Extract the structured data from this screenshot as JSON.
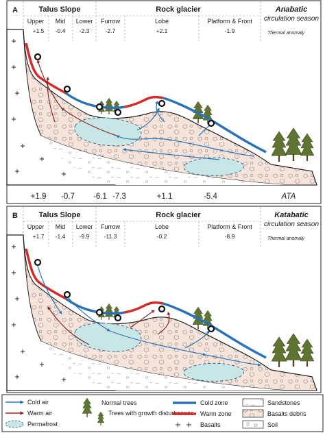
{
  "colors": {
    "cold": "#2a72b5",
    "warm": "#d42a2a",
    "slope_fill": "#f4e4dc",
    "permafrost": "#c8e6e6",
    "tree": "#5f7430"
  },
  "panels": [
    {
      "letter": "A",
      "headers": {
        "talus": "Talus Slope",
        "rock": "Rock glacier"
      },
      "season": {
        "title": "Anabatic",
        "sub": "circulation season"
      },
      "thermal_label": "Thermal anomaly",
      "zones": [
        {
          "label": "Upper",
          "value": "+1.5"
        },
        {
          "label": "Mid",
          "value": "-0.4"
        },
        {
          "label": "Lower",
          "value": "-2.3"
        },
        {
          "label": "Furrow",
          "value": "-2.7"
        },
        {
          "label": "Lobe",
          "value": "+2.1"
        },
        {
          "label": "Platform & Front",
          "value": "-1.9"
        }
      ],
      "ata_label": "ATA",
      "ata_values": [
        "+1.9",
        "-0.7",
        "-6.1",
        "-7.3",
        "+1.1",
        "-5.4"
      ]
    },
    {
      "letter": "B",
      "headers": {
        "talus": "Talus Slope",
        "rock": "Rock glacier"
      },
      "season": {
        "title": "Katabatic",
        "sub": "circulation season"
      },
      "thermal_label": "Thermal anomaly",
      "zones": [
        {
          "label": "Upper",
          "value": "+1.7"
        },
        {
          "label": "Mid",
          "value": "-1.4"
        },
        {
          "label": "Lower",
          "value": "-9.9"
        },
        {
          "label": "Furrow",
          "value": "-11.3"
        },
        {
          "label": "Lobe",
          "value": "-0.2"
        },
        {
          "label": "Platform & Front",
          "value": "-8.9"
        }
      ]
    }
  ],
  "legend": {
    "cold_air": "Cold air",
    "warm_air": "Warm air",
    "permafrost": "Permafrost",
    "normal_trees": "Normal trees",
    "disturbed_trees": "Trees with growth disturbances",
    "cold_zone": "Cold zone",
    "warm_zone": "Warm zone",
    "basalts": "Basalts",
    "sandstones": "Sandstones",
    "basalts_debris": "Basalts debris",
    "soil": "Soil"
  }
}
